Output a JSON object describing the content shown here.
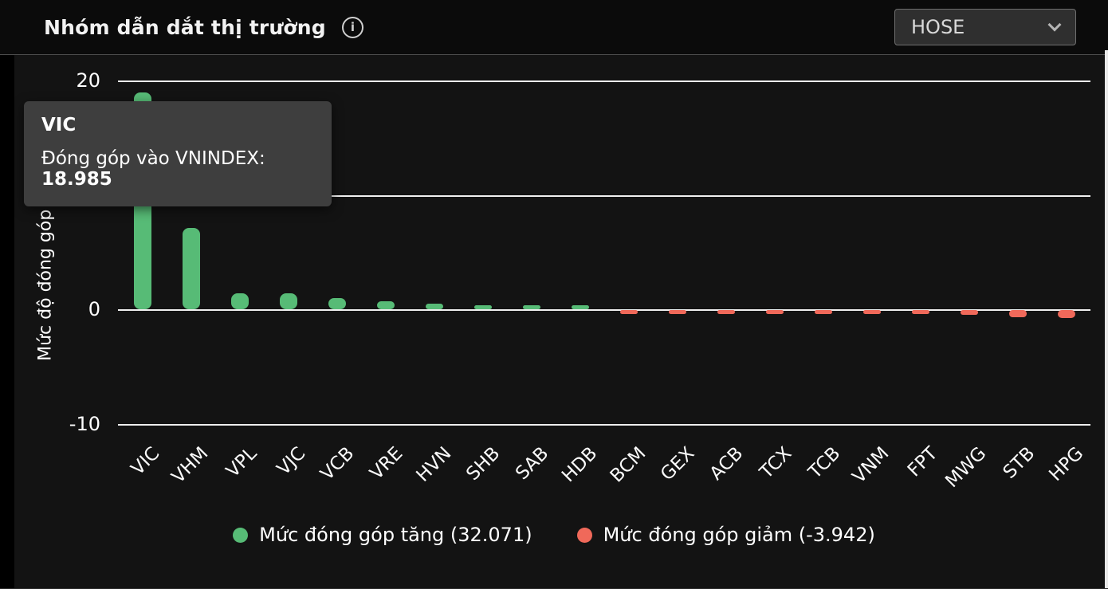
{
  "header": {
    "title": "Nhóm dẫn dắt thị trường",
    "exchange_selector": {
      "value": "HOSE"
    }
  },
  "tooltip": {
    "symbol": "VIC",
    "label": "Đóng góp vào VNINDEX:",
    "value": "18.985"
  },
  "chart_data": {
    "type": "bar",
    "title": "Nhóm dẫn dắt thị trường",
    "ylabel": "Mức độ đóng góp (",
    "categories": [
      "VIC",
      "VHM",
      "VPL",
      "VJC",
      "VCB",
      "VRE",
      "HVN",
      "SHB",
      "SAB",
      "HDB",
      "BCM",
      "GEX",
      "ACB",
      "TCX",
      "TCB",
      "VNM",
      "FPT",
      "MWG",
      "STB",
      "HPG"
    ],
    "values": [
      18.985,
      7.1,
      1.4,
      1.4,
      1.0,
      0.7,
      0.5,
      0.35,
      0.35,
      0.3,
      -0.2,
      -0.2,
      -0.25,
      -0.25,
      -0.3,
      -0.3,
      -0.35,
      -0.4,
      -0.6,
      -0.7
    ],
    "yticks": [
      20,
      10,
      0,
      -10
    ],
    "ylim": [
      -11.5,
      21.5
    ],
    "grid": true,
    "legend_position": "bottom",
    "colors": {
      "positive": "#57bb76",
      "negative": "#f0695a"
    },
    "legend": {
      "increase_label": "Mức đóng góp tăng (32.071)",
      "decrease_label": "Mức đóng góp giảm (-3.942)",
      "increase_total": 32.071,
      "decrease_total": -3.942
    },
    "highlighted_bar": "VIC",
    "highlighted_value": 18.985
  }
}
